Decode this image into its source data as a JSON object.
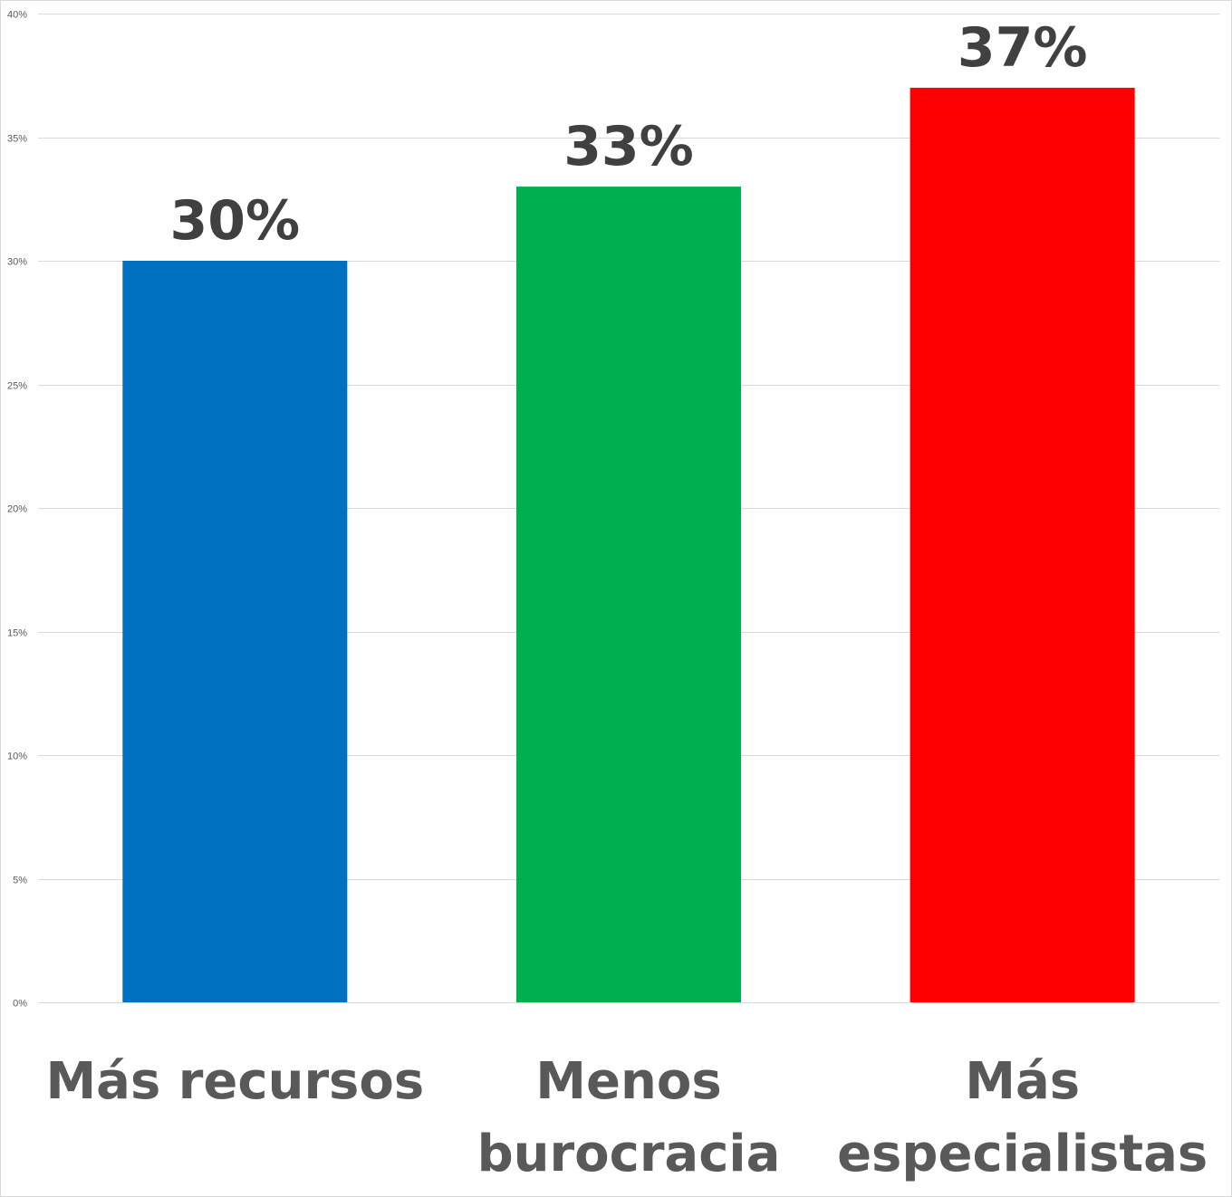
{
  "chart_data": {
    "type": "bar",
    "title": "",
    "xlabel": "",
    "ylabel": "",
    "categories": [
      "Más recursos",
      "Menos burocracia",
      "Más especialistas"
    ],
    "category_lines": [
      [
        "Más recursos"
      ],
      [
        "Menos",
        "burocracia"
      ],
      [
        "Más",
        "especialistas"
      ]
    ],
    "values": [
      30,
      33,
      37
    ],
    "data_labels": [
      "30%",
      "33%",
      "37%"
    ],
    "colors": [
      "#0070C0",
      "#00B050",
      "#FF0000"
    ],
    "ylim": [
      0,
      40
    ],
    "yticks": [
      0,
      5,
      10,
      15,
      20,
      25,
      30,
      35,
      40
    ],
    "ytick_labels": [
      "0%",
      "5%",
      "10%",
      "15%",
      "20%",
      "25%",
      "30%",
      "35%",
      "40%"
    ],
    "grid": true,
    "legend": "none"
  }
}
